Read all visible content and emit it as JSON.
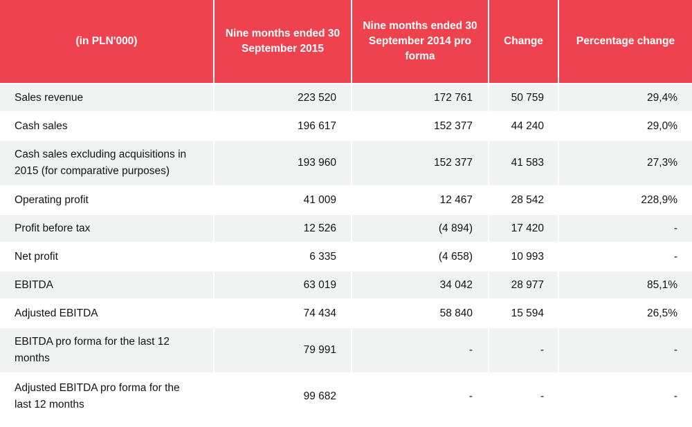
{
  "table": {
    "headers": [
      "(in PLN'000)",
      "Nine months ended 30 September 2015",
      "Nine months ended 30 September 2014 pro forma",
      "Change",
      "Percentage change"
    ],
    "rows": [
      [
        "Sales revenue",
        "223 520",
        "172 761",
        "50 759",
        "29,4%"
      ],
      [
        "Cash sales",
        "196 617",
        "152 377",
        "44 240",
        "29,0%"
      ],
      [
        "Cash sales excluding acquisitions in 2015 (for comparative purposes)",
        "193 960",
        "152 377",
        "41 583",
        "27,3%"
      ],
      [
        "Operating profit",
        "41 009",
        "12 467",
        "28 542",
        "228,9%"
      ],
      [
        "Profit before tax",
        "12 526",
        "(4 894)",
        "17 420",
        "-"
      ],
      [
        "Net profit",
        "6 335",
        "(4 658)",
        "10 993",
        "-"
      ],
      [
        "EBITDA",
        "63 019",
        "34 042",
        "28 977",
        "85,1%"
      ],
      [
        "Adjusted EBITDA",
        "74 434",
        "58 840",
        "15 594",
        "26,5%"
      ],
      [
        "EBITDA pro forma for the last 12 months",
        "79 991",
        "-",
        "-",
        "-"
      ],
      [
        "Adjusted EBITDA pro forma for the last 12 months",
        "99 682",
        "-",
        "-",
        "-"
      ]
    ]
  },
  "colors": {
    "header_bg": "#ee434f",
    "header_text": "#ffffff",
    "row_alt_bg": "#f1f2f2"
  }
}
